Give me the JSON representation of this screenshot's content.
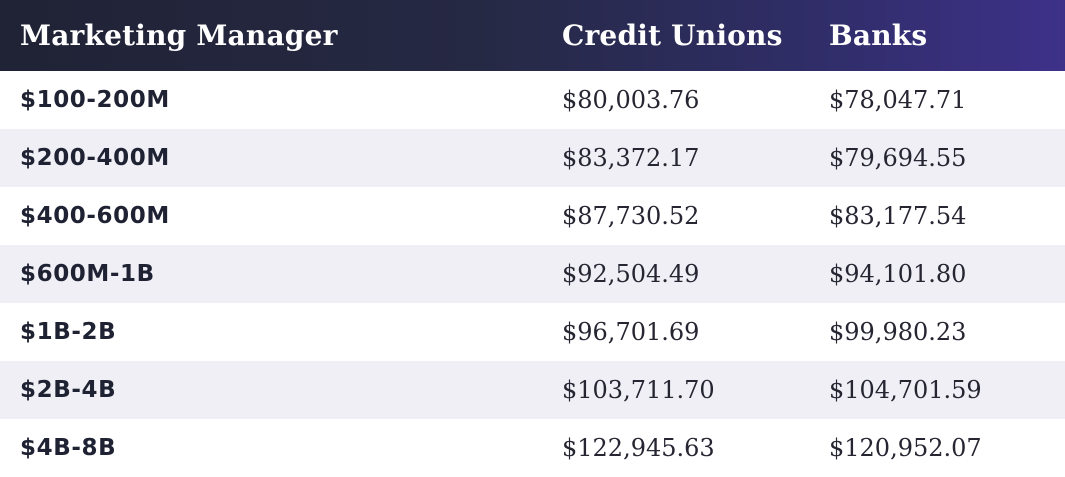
{
  "table": {
    "headers": [
      "Marketing Manager",
      "Credit Unions",
      "Banks"
    ],
    "rows": [
      [
        "$100-200M",
        "$80,003.76",
        "$78,047.71"
      ],
      [
        "$200-400M",
        "$83,372.17",
        "$79,694.55"
      ],
      [
        "$400-600M",
        "$87,730.52",
        "$83,177.54"
      ],
      [
        "$600M-1B",
        "$92,504.49",
        "$94,101.80"
      ],
      [
        "$1B-2B",
        "$96,701.69",
        "$99,980.23"
      ],
      [
        "$2B-4B",
        "$103,711.70",
        "$104,701.59"
      ],
      [
        "$4B-8B",
        "$122,945.63",
        "$120,952.07"
      ]
    ]
  },
  "colors": {
    "header_start": "#202235",
    "header_end": "#3d3189",
    "row_alt": "#efeff5",
    "text": "#24242f"
  }
}
